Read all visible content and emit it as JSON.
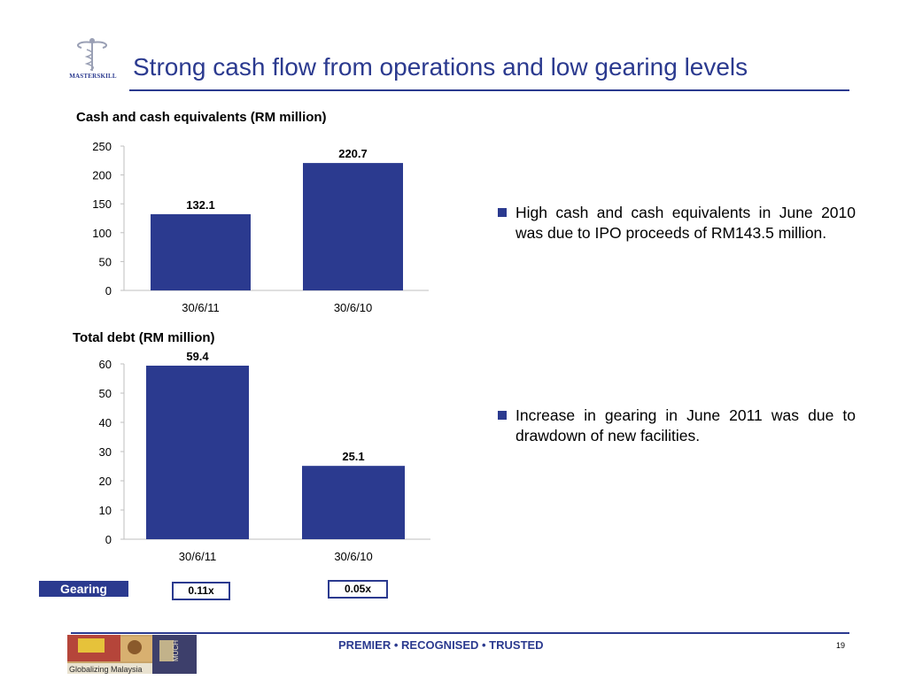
{
  "slide": {
    "title": "Strong cash flow from operations and low gearing levels",
    "logo_text": "MASTERSKILL",
    "page_number": "19",
    "footer": {
      "text": "PREMIER  •  RECOGNISED •  TRUSTED",
      "image_caption": "Globalizing Malaysia",
      "image_brand": "MUCH"
    }
  },
  "bullets": [
    "High cash and cash equivalents in June 2010 was due to IPO proceeds of RM143.5 million.",
    "Increase in gearing in June 2011 was due to drawdown of new facilities."
  ],
  "gearing": {
    "label": "Gearing",
    "values": [
      "0.11x",
      "0.05x"
    ]
  },
  "colors": {
    "bar": "#2b3a8f",
    "accent": "#2b3a8f",
    "axis": "#bfbfbf"
  },
  "chart_data": [
    {
      "type": "bar",
      "title": "Cash and cash equivalents (RM million)",
      "categories": [
        "30/6/11",
        "30/6/10"
      ],
      "values": [
        132.1,
        220.7
      ],
      "value_labels": [
        "132.1",
        "220.7"
      ],
      "ylim": [
        0,
        250
      ],
      "yticks": [
        0,
        50,
        100,
        150,
        200,
        250
      ],
      "grid": false,
      "legend": "none"
    },
    {
      "type": "bar",
      "title": "Total debt (RM million)",
      "categories": [
        "30/6/11",
        "30/6/10"
      ],
      "values": [
        59.4,
        25.1
      ],
      "value_labels": [
        "59.4",
        "25.1"
      ],
      "ylim": [
        0,
        60
      ],
      "yticks": [
        0,
        10,
        20,
        30,
        40,
        50,
        60
      ],
      "grid": false,
      "legend": "none"
    }
  ]
}
